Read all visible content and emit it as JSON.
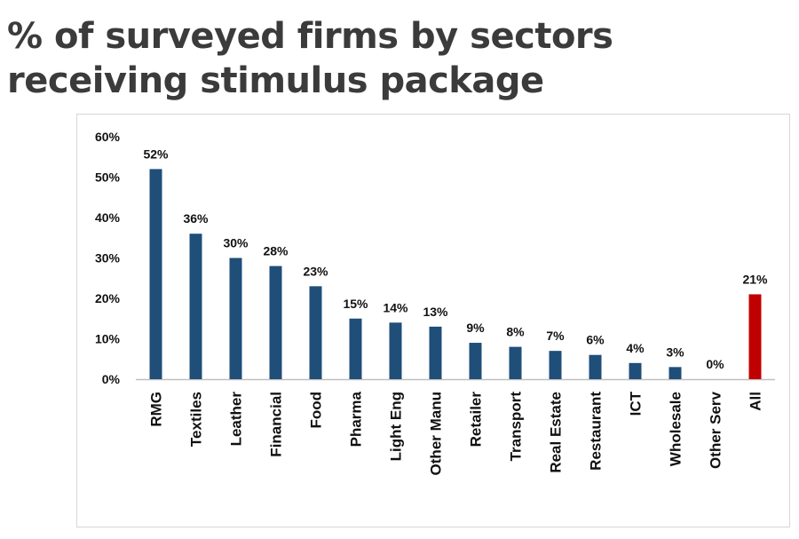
{
  "slide": {
    "title": "% of surveyed firms by sectors receiving stimulus package"
  },
  "chart_data": {
    "type": "bar",
    "title": "",
    "xlabel": "",
    "ylabel": "",
    "categories": [
      "RMG",
      "Textiles",
      "Leather",
      "Financial",
      "Food",
      "Pharma",
      "Light Eng",
      "Other Manu",
      "Retailer",
      "Transport",
      "Real Estate",
      "Restaurant",
      "ICT",
      "Wholesale",
      "Other Serv",
      "All"
    ],
    "values": [
      52,
      36,
      30,
      28,
      23,
      15,
      14,
      13,
      9,
      8,
      7,
      6,
      4,
      3,
      0,
      21
    ],
    "data_labels": [
      "52%",
      "36%",
      "30%",
      "28%",
      "23%",
      "15%",
      "14%",
      "13%",
      "9%",
      "8%",
      "7%",
      "6%",
      "4%",
      "3%",
      "0%",
      "21%"
    ],
    "ylim": [
      0,
      60
    ],
    "yticks": [
      0,
      10,
      20,
      30,
      40,
      50,
      60
    ],
    "ytick_labels": [
      "0%",
      "10%",
      "20%",
      "30%",
      "40%",
      "50%",
      "60%"
    ],
    "grid": false,
    "legend": "none",
    "colors": {
      "bar": "#1f4e79",
      "highlight": "#c00000",
      "highlight_category": "All"
    }
  }
}
